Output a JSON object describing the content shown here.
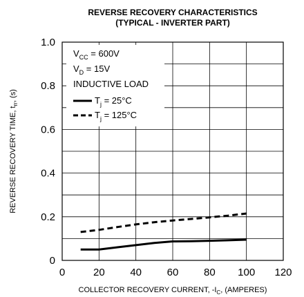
{
  "chart_data": {
    "type": "line",
    "title_line1": "REVERSE RECOVERY CHARACTERISTICS",
    "title_line2": "(TYPICAL - INVERTER PART)",
    "xlabel": {
      "prefix": "COLLECTOR RECOVERY CURRENT, -I",
      "sub": "C",
      "suffix": ", (AMPERES)"
    },
    "ylabel": {
      "prefix": "REVERSE RECOVERY TIME, t",
      "sub": "rr",
      "suffix": ", (s)"
    },
    "xlim": [
      0,
      120
    ],
    "ylim": [
      0,
      1.0
    ],
    "xticks": [
      0,
      20,
      40,
      60,
      80,
      100,
      120
    ],
    "yticks": [
      0,
      0.2,
      0.4,
      0.6,
      0.8,
      1.0
    ],
    "xtick_labels": [
      "0",
      "20",
      "40",
      "60",
      "80",
      "100",
      "120"
    ],
    "ytick_labels": [
      "0",
      "0.2",
      "0.4",
      "0.6",
      "0.8",
      "1.0"
    ],
    "grid": true,
    "conditions": {
      "vcc": {
        "main": "V",
        "sub": "CC",
        "value": " = 600V"
      },
      "vd": {
        "main": "V",
        "sub": "D",
        "value": " = 15V"
      },
      "load": "INDUCTIVE LOAD"
    },
    "series": [
      {
        "legend": {
          "main": "T",
          "sub": "j",
          "value": " = 25°C"
        },
        "style": "solid",
        "x": [
          10,
          20,
          30,
          40,
          50,
          60,
          70,
          80,
          90,
          100
        ],
        "y": [
          0.05,
          0.05,
          0.06,
          0.07,
          0.08,
          0.087,
          0.088,
          0.09,
          0.092,
          0.095
        ]
      },
      {
        "legend": {
          "main": "T",
          "sub": "j",
          "value": " = 125°C"
        },
        "style": "dashed",
        "x": [
          10,
          20,
          30,
          40,
          50,
          60,
          70,
          80,
          90,
          100
        ],
        "y": [
          0.13,
          0.14,
          0.153,
          0.165,
          0.175,
          0.183,
          0.19,
          0.197,
          0.205,
          0.215
        ]
      }
    ],
    "line_color": "#000000"
  }
}
